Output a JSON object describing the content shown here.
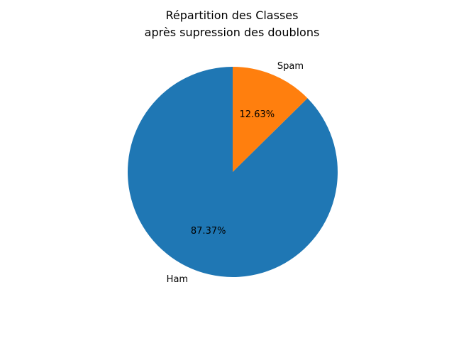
{
  "chart_data": {
    "type": "pie",
    "title_lines": [
      "Répartition des Classes",
      "après supression des doublons"
    ],
    "categories": [
      "Ham",
      "Spam"
    ],
    "values": [
      87.37,
      12.63
    ],
    "percent_labels": [
      "87.37%",
      "12.63%"
    ],
    "colors": [
      "#1f77b4",
      "#ff7f0e"
    ],
    "start_angle": 90,
    "direction": "counterclockwise"
  }
}
